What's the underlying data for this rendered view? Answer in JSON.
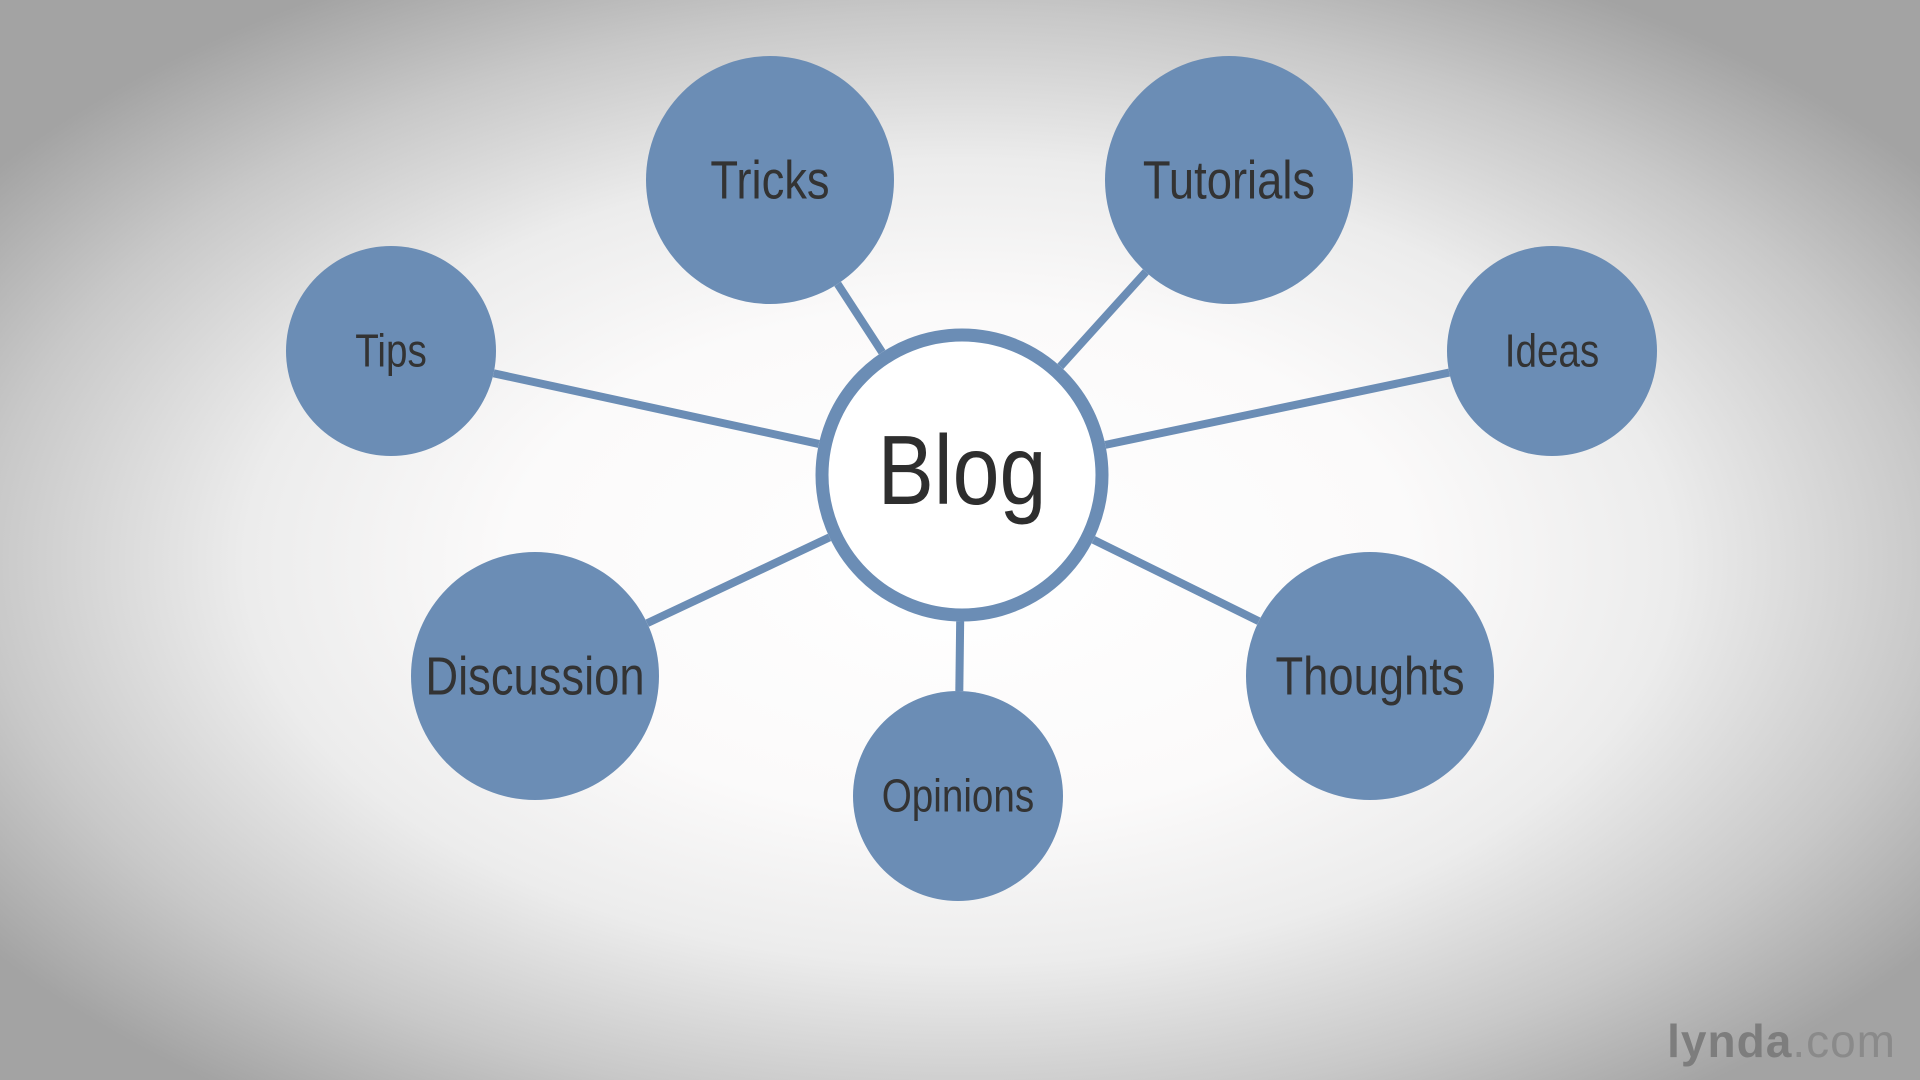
{
  "diagram": {
    "center": {
      "label": "Blog"
    },
    "nodes": [
      {
        "id": "tricks",
        "label": "Tricks"
      },
      {
        "id": "tutorials",
        "label": "Tutorials"
      },
      {
        "id": "tips",
        "label": "Tips"
      },
      {
        "id": "ideas",
        "label": "Ideas"
      },
      {
        "id": "discussion",
        "label": "Discussion"
      },
      {
        "id": "thoughts",
        "label": "Thoughts"
      },
      {
        "id": "opinions",
        "label": "Opinions"
      }
    ],
    "colors": {
      "node_fill": "#6b8db5",
      "center_ring": "#6b8db5",
      "center_fill": "#ffffff",
      "connector": "#6b8db5",
      "label_text": "#333333"
    }
  },
  "watermark": {
    "brand": "lynda",
    "suffix": ".com"
  }
}
